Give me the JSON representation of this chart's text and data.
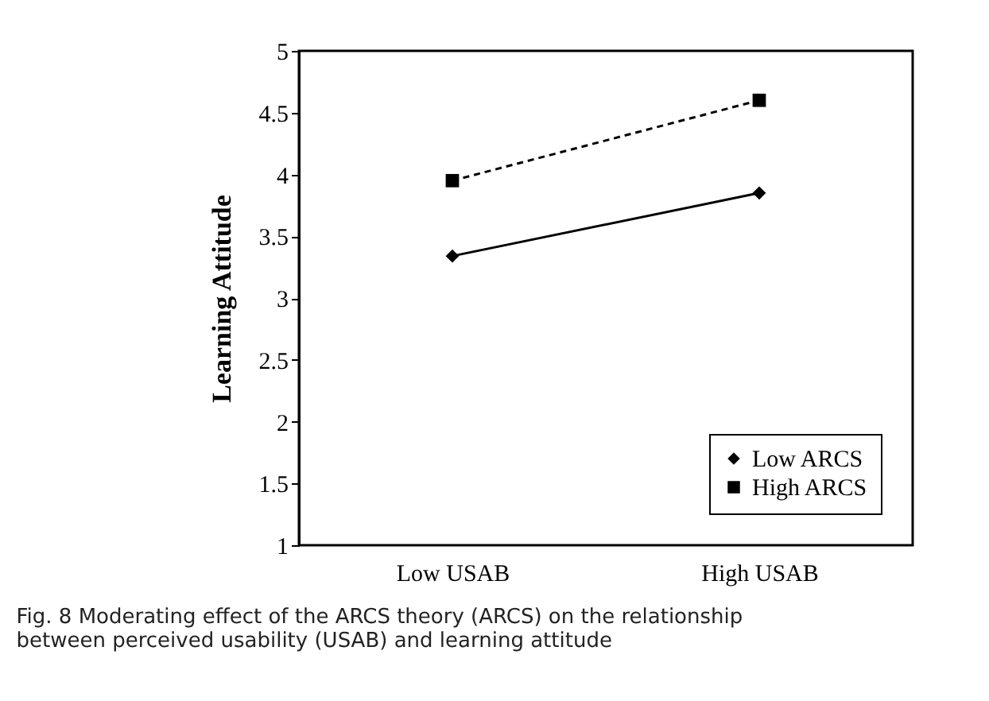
{
  "chart_data": {
    "type": "line",
    "categories": [
      "Low USAB",
      "High USAB"
    ],
    "series": [
      {
        "name": "Low ARCS",
        "color": "#000000",
        "values": [
          3.34,
          3.85
        ],
        "marker": "diamond",
        "line_style": "solid"
      },
      {
        "name": "High ARCS",
        "color": "#000000",
        "values": [
          3.95,
          4.6
        ],
        "marker": "square",
        "line_style": "dashed"
      }
    ],
    "ylabel": "Learning  Attitude",
    "ylim": [
      1,
      5
    ],
    "yticks": [
      1,
      1.5,
      2,
      2.5,
      3,
      3.5,
      4,
      4.5,
      5
    ],
    "grid": false,
    "legend": "bottom right",
    "annotations": [
      "Fig. 8  Moderating effect of the ARCS theory (ARCS) on the relationship between perceived usability (USAB) and learning attitude"
    ]
  }
}
